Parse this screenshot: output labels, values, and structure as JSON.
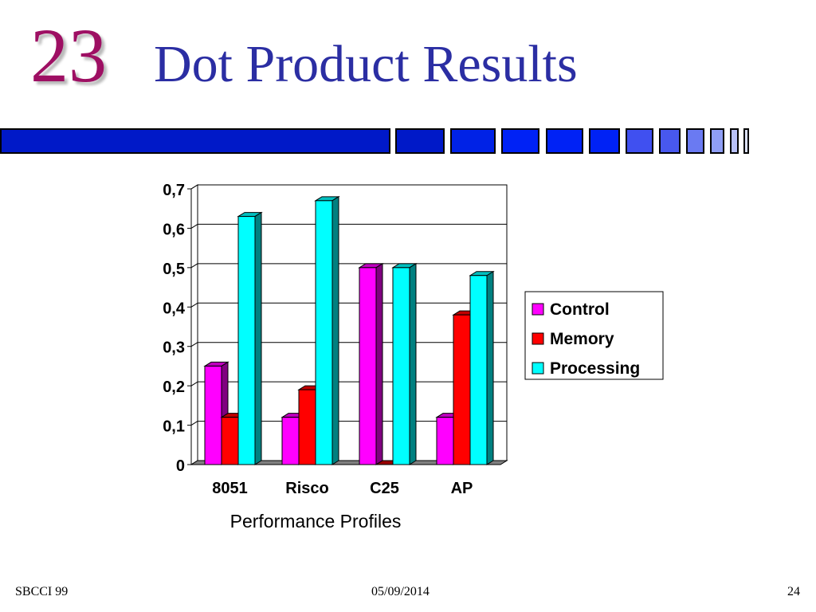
{
  "slide": {
    "number": "23",
    "title": "Dot Product Results",
    "accent_color": "#2b2ea3",
    "number_color": "#9e0f63"
  },
  "footer": {
    "left": "SBCCI 99",
    "center": "05/09/2014",
    "right": "24"
  },
  "chart_data": {
    "type": "bar",
    "title": "",
    "xlabel": "Performance Profiles",
    "ylabel": "",
    "categories": [
      "8051",
      "Risco",
      "C25",
      "AP"
    ],
    "series": [
      {
        "name": "Control",
        "values": [
          0.25,
          0.12,
          0.5,
          0.12
        ],
        "color": "#ff00ff"
      },
      {
        "name": "Memory",
        "values": [
          0.12,
          0.19,
          0.0,
          0.38
        ],
        "color": "#ff0000"
      },
      {
        "name": "Processing",
        "values": [
          0.63,
          0.67,
          0.5,
          0.48
        ],
        "color": "#00ffff"
      }
    ],
    "ylim": [
      0,
      0.7
    ],
    "yticks": [
      "0",
      "0,1",
      "0,2",
      "0,3",
      "0,4",
      "0,5",
      "0,6",
      "0,7"
    ],
    "grid": true,
    "legend_position": "right",
    "style": "3d-columns"
  }
}
